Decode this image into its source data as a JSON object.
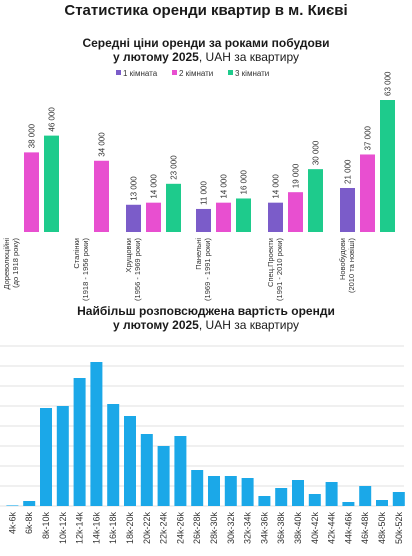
{
  "header": {
    "title": "Статистика оренди квартир в м. Києві"
  },
  "chart_data": [
    {
      "type": "bar",
      "title_bold": "Середні ціни оренди за роками побудови",
      "title_bold_2": "у лютому 2025",
      "title_rest": ", UAH за квартиру",
      "categories": [
        [
          "Дореволюційні",
          "(до 1918 року)"
        ],
        [
          "Сталінки",
          "(1918 - 1956 роки)"
        ],
        [
          "Хрущовки",
          "(1956 - 1969 роки)"
        ],
        [
          "Панельні",
          "(1969 - 1991 роки)"
        ],
        [
          "Спец.Проекти",
          "(1991 - 2010 роки)"
        ],
        [
          "Новобудови",
          "(2010 та новіші)"
        ]
      ],
      "series": [
        {
          "name": "1 кімната",
          "color": "#7b5cc9",
          "values": [
            null,
            null,
            13000,
            11000,
            14000,
            21000
          ]
        },
        {
          "name": "2 кімнати",
          "color": "#e84fd0",
          "values": [
            38000,
            34000,
            14000,
            14000,
            19000,
            37000
          ]
        },
        {
          "name": "3 кімнати",
          "color": "#1ecb8c",
          "values": [
            46000,
            null,
            23000,
            16000,
            30000,
            63000
          ]
        }
      ],
      "value_labels": {
        "1 кімната": [
          null,
          null,
          "13 000",
          "11 000",
          "14 000",
          "21 000"
        ],
        "2 кімнати": [
          "38 000",
          "34 000",
          "14 000",
          "14 000",
          "19 000",
          "37 000"
        ],
        "3 кімнати": [
          "46 000",
          null,
          "23 000",
          "16 000",
          "30 000",
          "63 000"
        ]
      },
      "legend_position": "top",
      "grid": false
    },
    {
      "type": "bar",
      "title_bold": "Найбільш розповсюджена вартість оренди",
      "title_bold_2": "у лютому 2025",
      "title_rest": ", UAH за квартиру",
      "color": "#1ba8e8",
      "categories": [
        "4k-6k",
        "6k-8k",
        "8k-10k",
        "10k-12k",
        "12k-14k",
        "14k-16k",
        "16k-18k",
        "18k-20k",
        "20k-22k",
        "22k-24k",
        "24k-26k",
        "26k-28k",
        "28k-30k",
        "30k-32k",
        "32k-34k",
        "34k-36k",
        "36k-38k",
        "38k-40k",
        "40k-42k",
        "42k-44k",
        "44k-46k",
        "46k-48k",
        "48k-50k",
        "50k-52k"
      ],
      "values": [
        0.3,
        2.5,
        49,
        50,
        64,
        72,
        51,
        45,
        36,
        30,
        35,
        18,
        15,
        15,
        14,
        5,
        9,
        13,
        6,
        12,
        2,
        10,
        3,
        7
      ],
      "ylim": [
        0,
        80
      ],
      "grid": true
    }
  ]
}
